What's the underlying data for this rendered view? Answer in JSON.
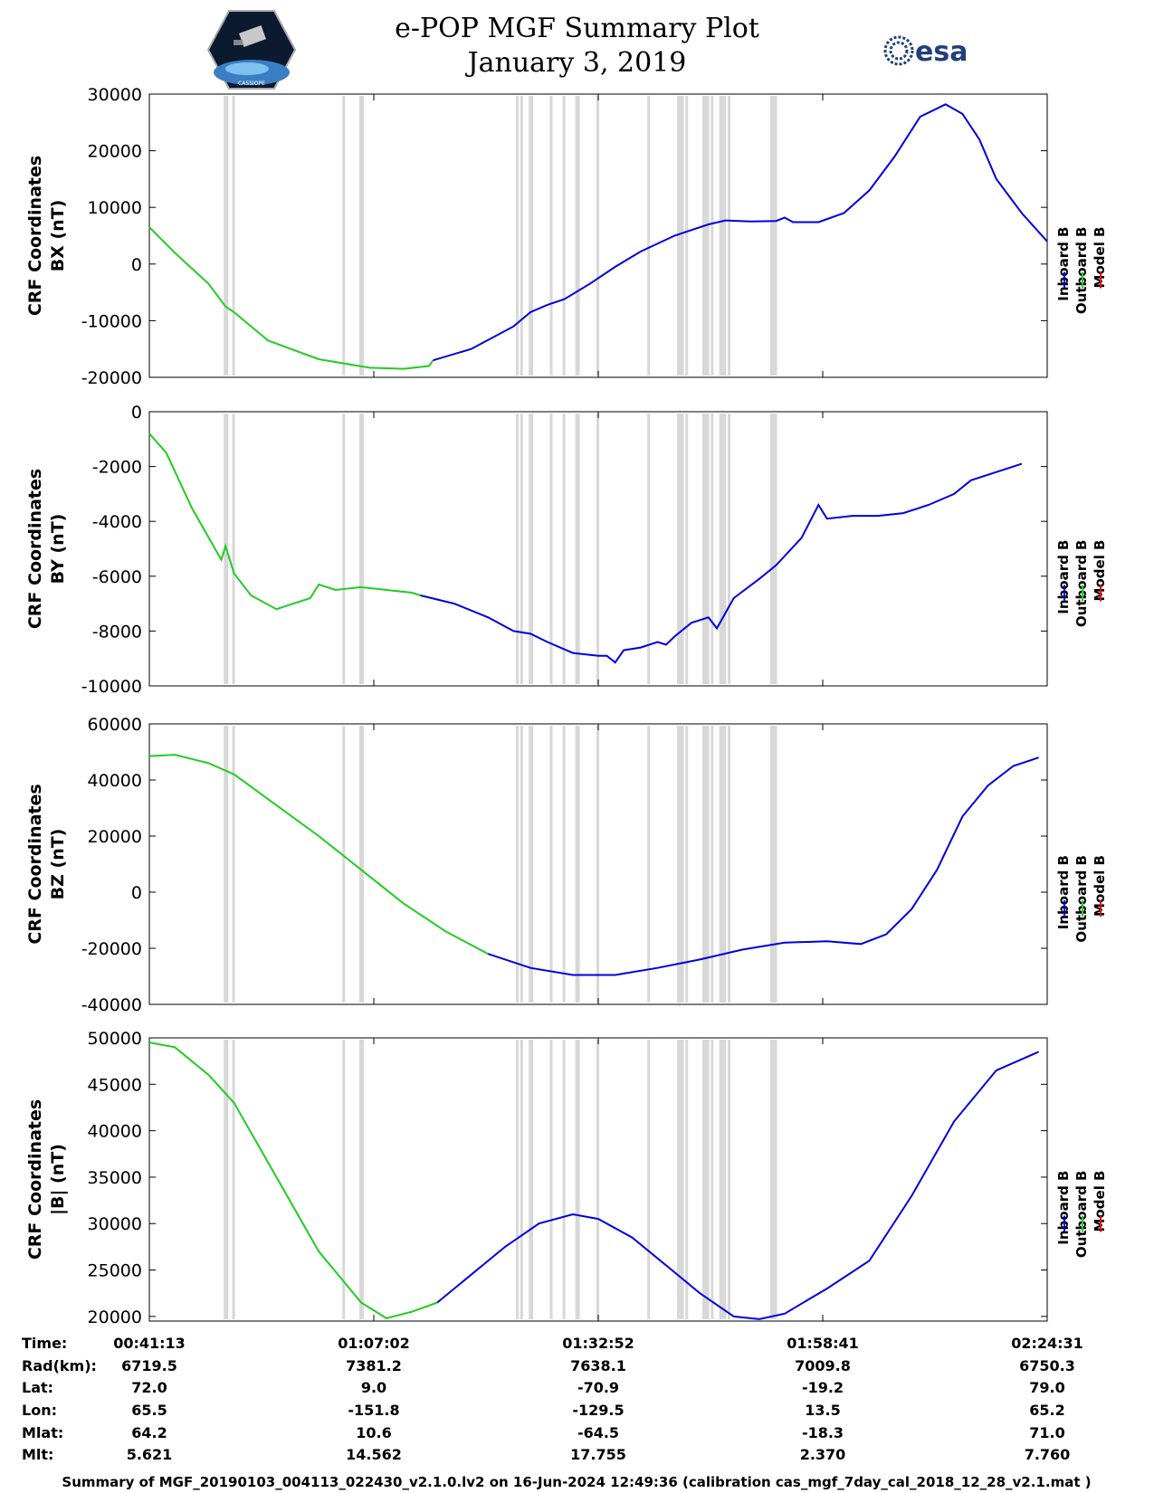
{
  "header": {
    "title_line1": "e-POP MGF Summary Plot",
    "title_line2": "January 3, 2019",
    "left_logo_text": "CASSIOPE",
    "right_logo_text": "esa"
  },
  "colors": {
    "inboard": "#0000dd",
    "outboard": "#22cc22",
    "model": "#ee0000",
    "gap": "#d8d8d8"
  },
  "legend": [
    "Inboard B",
    "Outboard B",
    "Model B"
  ],
  "chart_data": [
    {
      "type": "line",
      "name": "BX",
      "ylabel_line1": "CRF Coordinates",
      "ylabel_line2": "BX (nT)",
      "ylim": [
        -20000,
        30000
      ],
      "yticks": [
        -20000,
        -10000,
        0,
        10000,
        20000,
        30000
      ],
      "ytick_labels": [
        "-20000",
        "-10000",
        "0",
        "10000",
        "20000",
        "30000"
      ],
      "outboard": [
        [
          0.0,
          6500
        ],
        [
          0.03,
          2000
        ],
        [
          0.07,
          -3500
        ],
        [
          0.09,
          -7500
        ],
        [
          0.1,
          -8500
        ],
        [
          0.14,
          -13500
        ],
        [
          0.2,
          -16800
        ],
        [
          0.26,
          -18300
        ],
        [
          0.3,
          -18500
        ],
        [
          0.33,
          -18000
        ],
        [
          0.335,
          -17000
        ]
      ],
      "inboard": [
        [
          0.335,
          -17000
        ],
        [
          0.38,
          -15000
        ],
        [
          0.43,
          -11000
        ],
        [
          0.45,
          -8500
        ],
        [
          0.47,
          -7200
        ],
        [
          0.49,
          -6200
        ],
        [
          0.52,
          -3500
        ],
        [
          0.55,
          -500
        ],
        [
          0.58,
          2200
        ],
        [
          0.62,
          5000
        ],
        [
          0.66,
          7000
        ],
        [
          0.68,
          7700
        ],
        [
          0.71,
          7500
        ],
        [
          0.74,
          7600
        ],
        [
          0.75,
          8200
        ],
        [
          0.76,
          7400
        ],
        [
          0.79,
          7400
        ],
        [
          0.82,
          9000
        ],
        [
          0.85,
          13000
        ],
        [
          0.88,
          19000
        ],
        [
          0.91,
          26000
        ],
        [
          0.94,
          28200
        ],
        [
          0.96,
          26500
        ],
        [
          0.98,
          22000
        ],
        [
          1.0,
          15000
        ],
        [
          1.03,
          9000
        ],
        [
          1.06,
          4000
        ]
      ],
      "xmax": 1.0
    },
    {
      "type": "line",
      "name": "BY",
      "ylabel_line1": "CRF Coordinates",
      "ylabel_line2": "BY (nT)",
      "ylim": [
        -10000,
        0
      ],
      "yticks": [
        -10000,
        -8000,
        -6000,
        -4000,
        -2000,
        0
      ],
      "ytick_labels": [
        "-10000",
        "-8000",
        "-6000",
        "-4000",
        "-2000",
        "0"
      ],
      "outboard": [
        [
          0.0,
          -800
        ],
        [
          0.02,
          -1500
        ],
        [
          0.05,
          -3500
        ],
        [
          0.085,
          -5400
        ],
        [
          0.09,
          -4900
        ],
        [
          0.1,
          -5900
        ],
        [
          0.12,
          -6700
        ],
        [
          0.15,
          -7200
        ],
        [
          0.17,
          -7000
        ],
        [
          0.19,
          -6800
        ],
        [
          0.2,
          -6300
        ],
        [
          0.22,
          -6500
        ],
        [
          0.25,
          -6400
        ],
        [
          0.28,
          -6500
        ],
        [
          0.31,
          -6600
        ],
        [
          0.32,
          -6700
        ]
      ],
      "inboard": [
        [
          0.32,
          -6700
        ],
        [
          0.36,
          -7000
        ],
        [
          0.4,
          -7500
        ],
        [
          0.43,
          -8000
        ],
        [
          0.45,
          -8100
        ],
        [
          0.47,
          -8400
        ],
        [
          0.5,
          -8800
        ],
        [
          0.53,
          -8900
        ],
        [
          0.54,
          -8900
        ],
        [
          0.55,
          -9150
        ],
        [
          0.56,
          -8700
        ],
        [
          0.58,
          -8600
        ],
        [
          0.6,
          -8400
        ],
        [
          0.61,
          -8500
        ],
        [
          0.62,
          -8200
        ],
        [
          0.64,
          -7700
        ],
        [
          0.66,
          -7500
        ],
        [
          0.67,
          -7900
        ],
        [
          0.69,
          -6800
        ],
        [
          0.72,
          -6100
        ],
        [
          0.74,
          -5600
        ],
        [
          0.77,
          -4600
        ],
        [
          0.79,
          -3400
        ],
        [
          0.8,
          -3900
        ],
        [
          0.83,
          -3800
        ],
        [
          0.86,
          -3800
        ],
        [
          0.89,
          -3700
        ],
        [
          0.92,
          -3400
        ],
        [
          0.95,
          -3000
        ],
        [
          0.97,
          -2500
        ],
        [
          1.0,
          -2200
        ],
        [
          1.03,
          -1900
        ]
      ],
      "xmax": 1.0
    },
    {
      "type": "line",
      "name": "BZ",
      "ylabel_line1": "CRF Coordinates",
      "ylabel_line2": "BZ (nT)",
      "ylim": [
        -40000,
        60000
      ],
      "yticks": [
        -40000,
        -20000,
        0,
        20000,
        40000,
        60000
      ],
      "ytick_labels": [
        "-40000",
        "-20000",
        "0",
        "20000",
        "40000",
        "60000"
      ],
      "outboard": [
        [
          0.0,
          48500
        ],
        [
          0.03,
          49000
        ],
        [
          0.07,
          46000
        ],
        [
          0.1,
          42000
        ],
        [
          0.15,
          31000
        ],
        [
          0.2,
          20000
        ],
        [
          0.25,
          8000
        ],
        [
          0.3,
          -4000
        ],
        [
          0.35,
          -14000
        ],
        [
          0.4,
          -22000
        ]
      ],
      "inboard": [
        [
          0.4,
          -22000
        ],
        [
          0.45,
          -27000
        ],
        [
          0.5,
          -29500
        ],
        [
          0.55,
          -29500
        ],
        [
          0.6,
          -27000
        ],
        [
          0.65,
          -24000
        ],
        [
          0.7,
          -20500
        ],
        [
          0.75,
          -18000
        ],
        [
          0.8,
          -17500
        ],
        [
          0.84,
          -18500
        ],
        [
          0.87,
          -15000
        ],
        [
          0.9,
          -6000
        ],
        [
          0.93,
          8000
        ],
        [
          0.96,
          27000
        ],
        [
          0.99,
          38000
        ],
        [
          1.02,
          45000
        ],
        [
          1.05,
          48000
        ]
      ],
      "xmax": 1.0
    },
    {
      "type": "line",
      "name": "|B|",
      "ylabel_line1": "CRF Coordinates",
      "ylabel_line2": "|B| (nT)",
      "ylim": [
        19500,
        50000
      ],
      "yticks": [
        20000,
        25000,
        30000,
        35000,
        40000,
        45000,
        50000
      ],
      "ytick_labels": [
        "20000",
        "25000",
        "30000",
        "35000",
        "40000",
        "45000",
        "50000"
      ],
      "outboard": [
        [
          0.0,
          49500
        ],
        [
          0.03,
          49000
        ],
        [
          0.07,
          46000
        ],
        [
          0.1,
          43000
        ],
        [
          0.15,
          35000
        ],
        [
          0.2,
          27000
        ],
        [
          0.25,
          21500
        ],
        [
          0.28,
          19800
        ],
        [
          0.31,
          20500
        ],
        [
          0.34,
          21500
        ]
      ],
      "inboard": [
        [
          0.34,
          21500
        ],
        [
          0.38,
          24500
        ],
        [
          0.42,
          27500
        ],
        [
          0.46,
          30000
        ],
        [
          0.5,
          31000
        ],
        [
          0.53,
          30500
        ],
        [
          0.57,
          28500
        ],
        [
          0.61,
          25500
        ],
        [
          0.65,
          22500
        ],
        [
          0.69,
          20000
        ],
        [
          0.72,
          19700
        ],
        [
          0.75,
          20300
        ],
        [
          0.8,
          23000
        ],
        [
          0.85,
          26000
        ],
        [
          0.9,
          33000
        ],
        [
          0.95,
          41000
        ],
        [
          1.0,
          46500
        ],
        [
          1.05,
          48500
        ]
      ],
      "xmax": 1.0
    }
  ],
  "gap_bands": [
    0.09,
    0.1,
    0.23,
    0.25,
    0.435,
    0.44,
    0.45,
    0.475,
    0.49,
    0.505,
    0.53,
    0.59,
    0.625,
    0.63,
    0.635,
    0.655,
    0.66,
    0.665,
    0.675,
    0.68,
    0.685,
    0.735,
    0.74
  ],
  "info_table": {
    "row_labels": [
      "Time:",
      "Rad(km):",
      "Lat:",
      "Lon:",
      "Mlat:",
      "Mlt:"
    ],
    "columns": [
      [
        "00:41:13",
        "6719.5",
        "72.0",
        "65.5",
        "64.2",
        "5.621"
      ],
      [
        "01:07:02",
        "7381.2",
        "9.0",
        "-151.8",
        "10.6",
        "14.562"
      ],
      [
        "01:32:52",
        "7638.1",
        "-70.9",
        "-129.5",
        "-64.5",
        "17.755"
      ],
      [
        "01:58:41",
        "7009.8",
        "-19.2",
        "13.5",
        "-18.3",
        "2.370"
      ],
      [
        "02:24:31",
        "6750.3",
        "79.0",
        "65.2",
        "71.0",
        "7.760"
      ]
    ]
  },
  "footer": "Summary of MGF_20190103_004113_022430_v2.1.0.lv2 on 16-Jun-2024 12:49:36 (calibration cas_mgf_7day_cal_2018_12_28_v2.1.mat )"
}
